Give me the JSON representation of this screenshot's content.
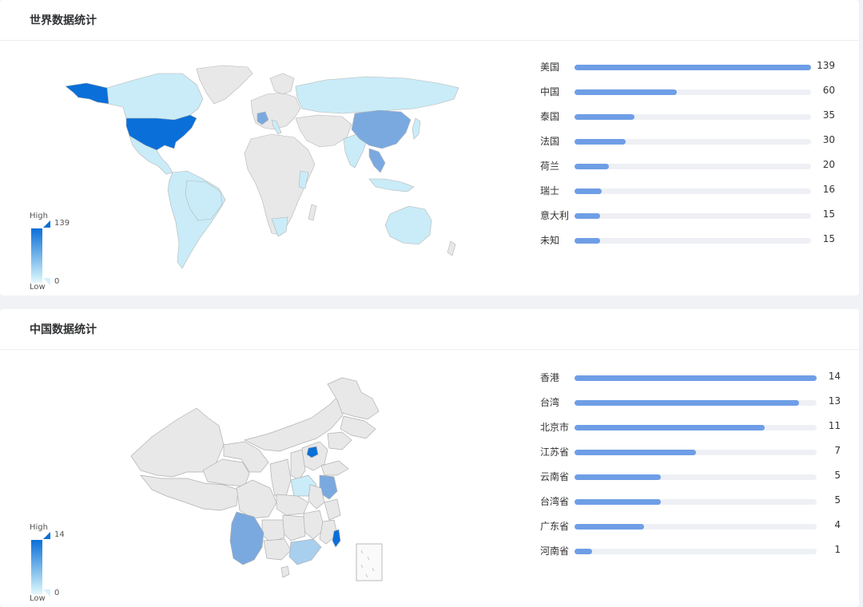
{
  "world": {
    "title": "世界数据统计",
    "legend": {
      "high_label": "High",
      "low_label": "Low",
      "max": "139",
      "min": "0"
    },
    "ranking": [
      {
        "label": "美国",
        "value": 139
      },
      {
        "label": "中国",
        "value": 60
      },
      {
        "label": "泰国",
        "value": 35
      },
      {
        "label": "法国",
        "value": 30
      },
      {
        "label": "荷兰",
        "value": 20
      },
      {
        "label": "瑞士",
        "value": 16
      },
      {
        "label": "意大利",
        "value": 15
      },
      {
        "label": "未知",
        "value": 15
      }
    ]
  },
  "china": {
    "title": "中国数据统计",
    "legend": {
      "high_label": "High",
      "low_label": "Low",
      "max": "14",
      "min": "0"
    },
    "ranking": [
      {
        "label": "香港",
        "value": 14
      },
      {
        "label": "台湾",
        "value": 13
      },
      {
        "label": "北京市",
        "value": 11
      },
      {
        "label": "江苏省",
        "value": 7
      },
      {
        "label": "云南省",
        "value": 5
      },
      {
        "label": "台湾省",
        "value": 5
      },
      {
        "label": "广东省",
        "value": 4
      },
      {
        "label": "河南省",
        "value": 1
      }
    ]
  },
  "colors": {
    "high": "#0a6fd8",
    "mid": "#7aa9e0",
    "low": "#c9ecf8",
    "no_data": "#e8e8e8",
    "bar_fill": "#6f9ee6",
    "bar_track": "#eef0f5"
  }
}
